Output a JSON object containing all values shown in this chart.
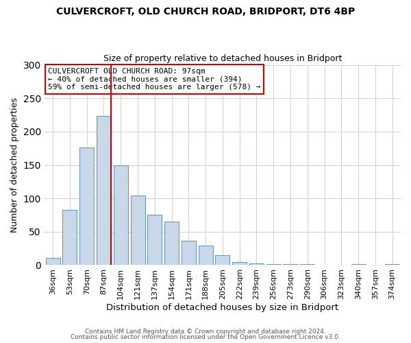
{
  "title1": "CULVERCROFT, OLD CHURCH ROAD, BRIDPORT, DT6 4BP",
  "title2": "Size of property relative to detached houses in Bridport",
  "xlabel": "Distribution of detached houses by size in Bridport",
  "ylabel": "Number of detached properties",
  "bar_labels": [
    "36sqm",
    "53sqm",
    "70sqm",
    "87sqm",
    "104sqm",
    "121sqm",
    "137sqm",
    "154sqm",
    "171sqm",
    "188sqm",
    "205sqm",
    "222sqm",
    "239sqm",
    "256sqm",
    "273sqm",
    "290sqm",
    "306sqm",
    "323sqm",
    "340sqm",
    "357sqm",
    "374sqm"
  ],
  "bar_values": [
    11,
    83,
    176,
    224,
    150,
    104,
    75,
    65,
    36,
    29,
    15,
    5,
    3,
    1,
    2,
    1,
    0,
    0,
    1,
    0,
    1
  ],
  "bar_color": "#c8d8e8",
  "bar_edge_color": "#6699bb",
  "vline_color": "#cc0000",
  "annotation_title": "CULVERCROFT OLD CHURCH ROAD: 97sqm",
  "annotation_line1": "← 40% of detached houses are smaller (394)",
  "annotation_line2": "59% of semi-detached houses are larger (578) →",
  "annotation_box_color": "#ffffff",
  "annotation_box_edge": "#cc0000",
  "ylim": [
    0,
    300
  ],
  "yticks": [
    0,
    50,
    100,
    150,
    200,
    250,
    300
  ],
  "footer1": "Contains HM Land Registry data © Crown copyright and database right 2024.",
  "footer2": "Contains public sector information licensed under the Open Government Licence v3.0."
}
